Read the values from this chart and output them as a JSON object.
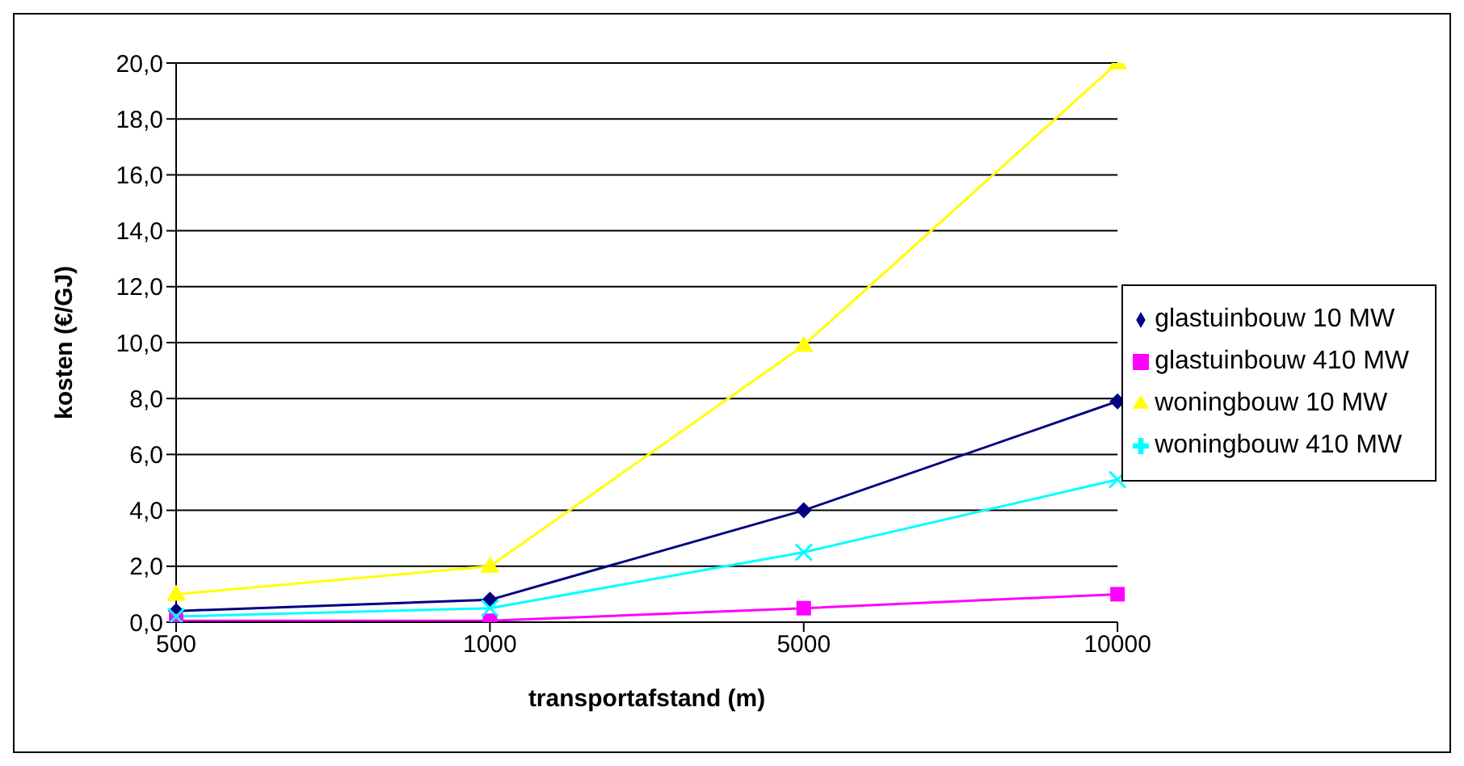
{
  "chart_data": {
    "type": "line",
    "xlabel": "transportafstand (m)",
    "ylabel": "kosten (€/GJ)",
    "categories": [
      "500",
      "1000",
      "5000",
      "10000"
    ],
    "series": [
      {
        "name": "glastuinbouw 10 MW",
        "color": "#000080",
        "marker": "diamond",
        "values": [
          0.4,
          0.8,
          4.0,
          7.9
        ]
      },
      {
        "name": "glastuinbouw 410 MW",
        "color": "#ff00ff",
        "marker": "square",
        "values": [
          0.05,
          0.05,
          0.5,
          1.0
        ]
      },
      {
        "name": "woningbouw 10 MW",
        "color": "#ffff00",
        "marker": "triangle",
        "values": [
          1.0,
          2.0,
          9.9,
          20.0
        ]
      },
      {
        "name": "woningbouw 410 MW",
        "color": "#00ffff",
        "marker": "cross",
        "values": [
          0.2,
          0.5,
          2.5,
          5.1
        ]
      }
    ],
    "ylim": [
      0,
      20
    ],
    "yticks": [
      {
        "value": 0,
        "label": "0,0"
      },
      {
        "value": 2,
        "label": "2,0"
      },
      {
        "value": 4,
        "label": "4,0"
      },
      {
        "value": 6,
        "label": "6,0"
      },
      {
        "value": 8,
        "label": "8,0"
      },
      {
        "value": 10,
        "label": "10,0"
      },
      {
        "value": 12,
        "label": "12,0"
      },
      {
        "value": 14,
        "label": "14,0"
      },
      {
        "value": 16,
        "label": "16,0"
      },
      {
        "value": 18,
        "label": "18,0"
      },
      {
        "value": 20,
        "label": "20,0"
      }
    ],
    "grid": "y",
    "legend": "right",
    "line_style": "solid"
  }
}
